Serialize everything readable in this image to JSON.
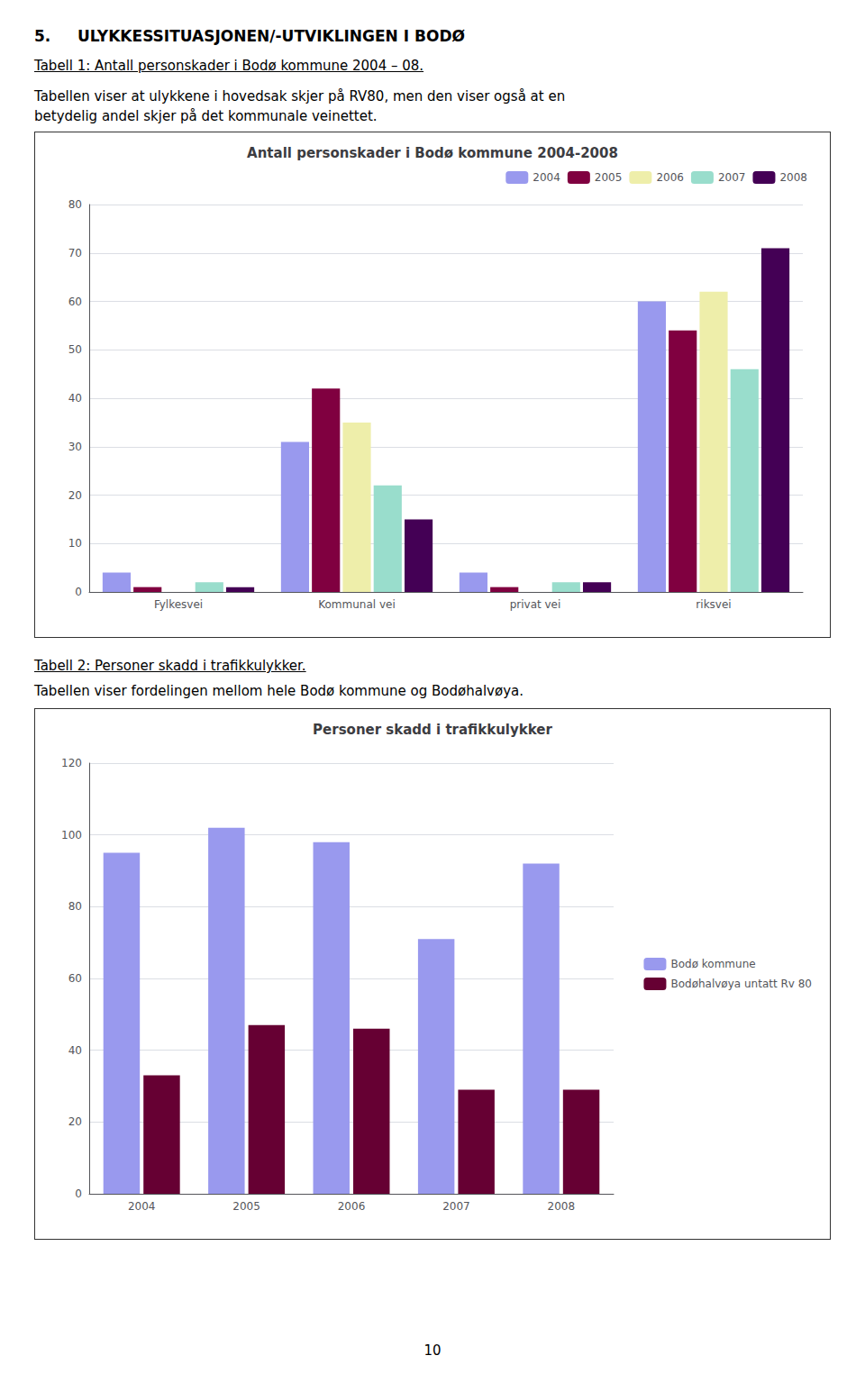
{
  "title": "5.     ULYKKESSITUASJONEN/-UTVIKLINGEN I BODØ",
  "annotations": [
    "10"
  ],
  "chart_data": [
    {
      "type": "bar",
      "title": "Antall personskader i Bodø kommune 2004-2008",
      "annotations": [
        "Tabell 1: Antall personskader i Bodø kommune 2004 – 08.",
        "Tabellen viser at ulykkene i hovedsak skjer på RV80, men den viser også at en",
        "betydelig andel skjer på det kommunale veinettet."
      ],
      "categories": [
        "Fylkesvei",
        "Kommunal vei",
        "privat vei",
        "riksvei"
      ],
      "series": [
        {
          "name": "2004",
          "color": "#9999ee",
          "values": [
            4,
            31,
            4,
            60
          ]
        },
        {
          "name": "2005",
          "color": "#800040",
          "values": [
            1,
            42,
            1,
            54
          ]
        },
        {
          "name": "2006",
          "color": "#eeeeaa",
          "values": [
            0,
            35,
            0,
            62
          ]
        },
        {
          "name": "2007",
          "color": "#99ddcc",
          "values": [
            2,
            22,
            2,
            46
          ]
        },
        {
          "name": "2008",
          "color": "#440055",
          "values": [
            1,
            15,
            2,
            71
          ]
        }
      ],
      "ylim": [
        0,
        80
      ],
      "yticks": [
        0,
        10,
        20,
        30,
        40,
        50,
        60,
        70,
        80
      ],
      "grid": true,
      "legend": "upper right"
    },
    {
      "type": "bar",
      "title": "Personer skadd i trafikkulykker",
      "annotations": [
        "Tabell 2: Personer skadd i trafikkulykker.",
        "Tabellen viser fordelingen mellom hele Bodø kommune og Bodøhalvøya."
      ],
      "categories": [
        "2004",
        "2005",
        "2006",
        "2007",
        "2008"
      ],
      "series": [
        {
          "name": "Bodø kommune",
          "color": "#9999ee",
          "values": [
            95,
            102,
            98,
            71,
            92
          ]
        },
        {
          "name": "Bodøhalvøya untatt Rv 80",
          "color": "#660033",
          "values": [
            33,
            47,
            46,
            29,
            29
          ]
        }
      ],
      "ylim": [
        0,
        120
      ],
      "yticks": [
        0,
        20,
        40,
        60,
        80,
        100,
        120
      ],
      "grid": true,
      "legend": "right"
    }
  ]
}
